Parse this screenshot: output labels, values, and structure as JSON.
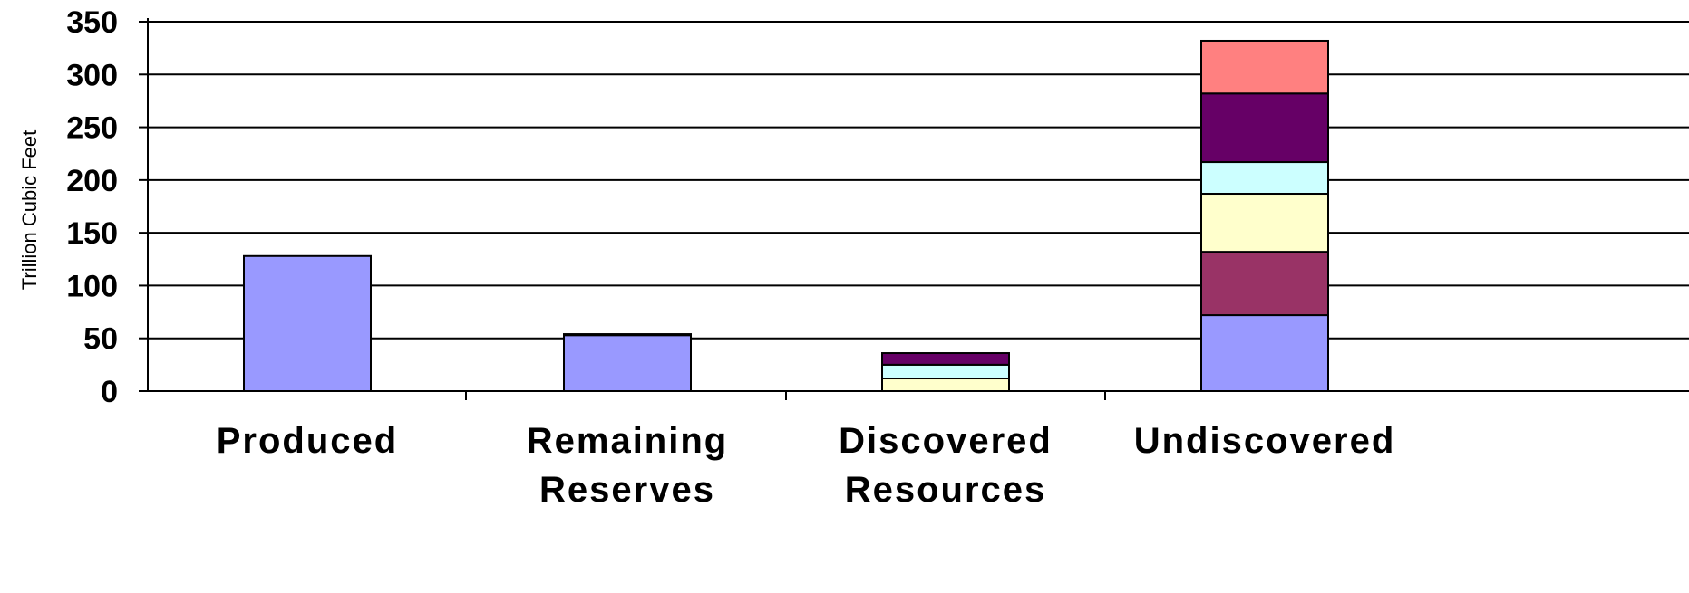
{
  "chart_data": {
    "type": "bar",
    "stacked": true,
    "title": "",
    "xlabel": "",
    "ylabel": "Trillion Cubic Feet",
    "ylim": [
      0,
      350
    ],
    "yticks": [
      "0",
      "50",
      "100",
      "150",
      "200",
      "250",
      "300",
      "350"
    ],
    "grid": true,
    "legend": "none",
    "categories": [
      {
        "lines": [
          "Produced"
        ]
      },
      {
        "lines": [
          "Remaining",
          "Reserves"
        ]
      },
      {
        "lines": [
          "Discovered",
          "Resources"
        ]
      },
      {
        "lines": [
          "Undiscovered"
        ]
      }
    ],
    "series": [
      {
        "color": "#9999FF",
        "values": [
          128,
          53,
          0,
          72
        ]
      },
      {
        "color": "#993366",
        "values": [
          0,
          0,
          0,
          60
        ]
      },
      {
        "color": "#FFFFCC",
        "values": [
          0,
          0,
          12,
          55
        ]
      },
      {
        "color": "#CCFFFF",
        "values": [
          0,
          0,
          13,
          30
        ]
      },
      {
        "color": "#660066",
        "values": [
          0,
          1,
          11,
          65
        ]
      },
      {
        "color": "#FF8080",
        "values": [
          0,
          0,
          0,
          50
        ]
      }
    ]
  }
}
